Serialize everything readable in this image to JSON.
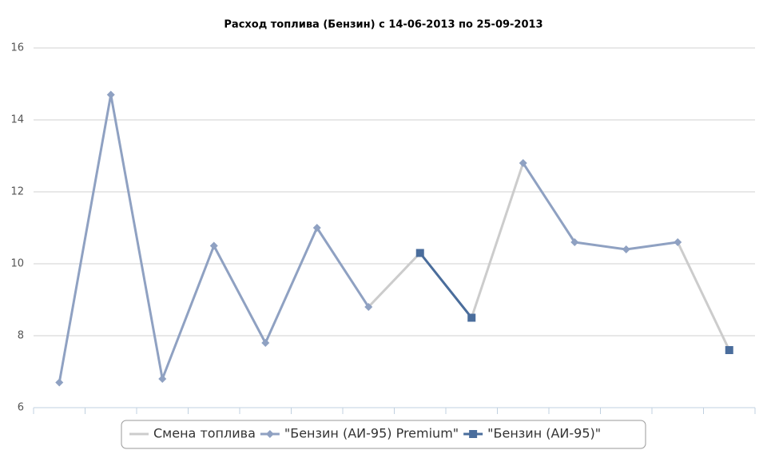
{
  "chart_data": {
    "type": "line",
    "title": "Расход топлива (Бензин) с 14-06-2013 по 25-09-2013",
    "ylim": [
      6,
      16
    ],
    "yticks": [
      6,
      8,
      10,
      12,
      14,
      16
    ],
    "grid": true,
    "series": [
      {
        "name": "Смена топлива",
        "color": "#cccccc",
        "marker": "none",
        "values": [
          null,
          null,
          null,
          null,
          null,
          null,
          8.8,
          10.3,
          8.5,
          12.8,
          null,
          null,
          10.6,
          7.6
        ]
      },
      {
        "name": "\"Бензин (АИ-95) Premium\"",
        "color": "#8fa1c2",
        "marker": "diamond",
        "values": [
          6.7,
          14.7,
          6.8,
          10.5,
          7.8,
          11.0,
          8.8,
          null,
          null,
          12.8,
          10.6,
          10.4,
          10.6,
          null
        ]
      },
      {
        "name": "\"Бензин (АИ-95)\"",
        "color": "#4a6d9c",
        "marker": "square",
        "values": [
          null,
          null,
          null,
          null,
          null,
          null,
          null,
          10.3,
          8.5,
          null,
          null,
          null,
          null,
          7.6
        ]
      }
    ]
  }
}
